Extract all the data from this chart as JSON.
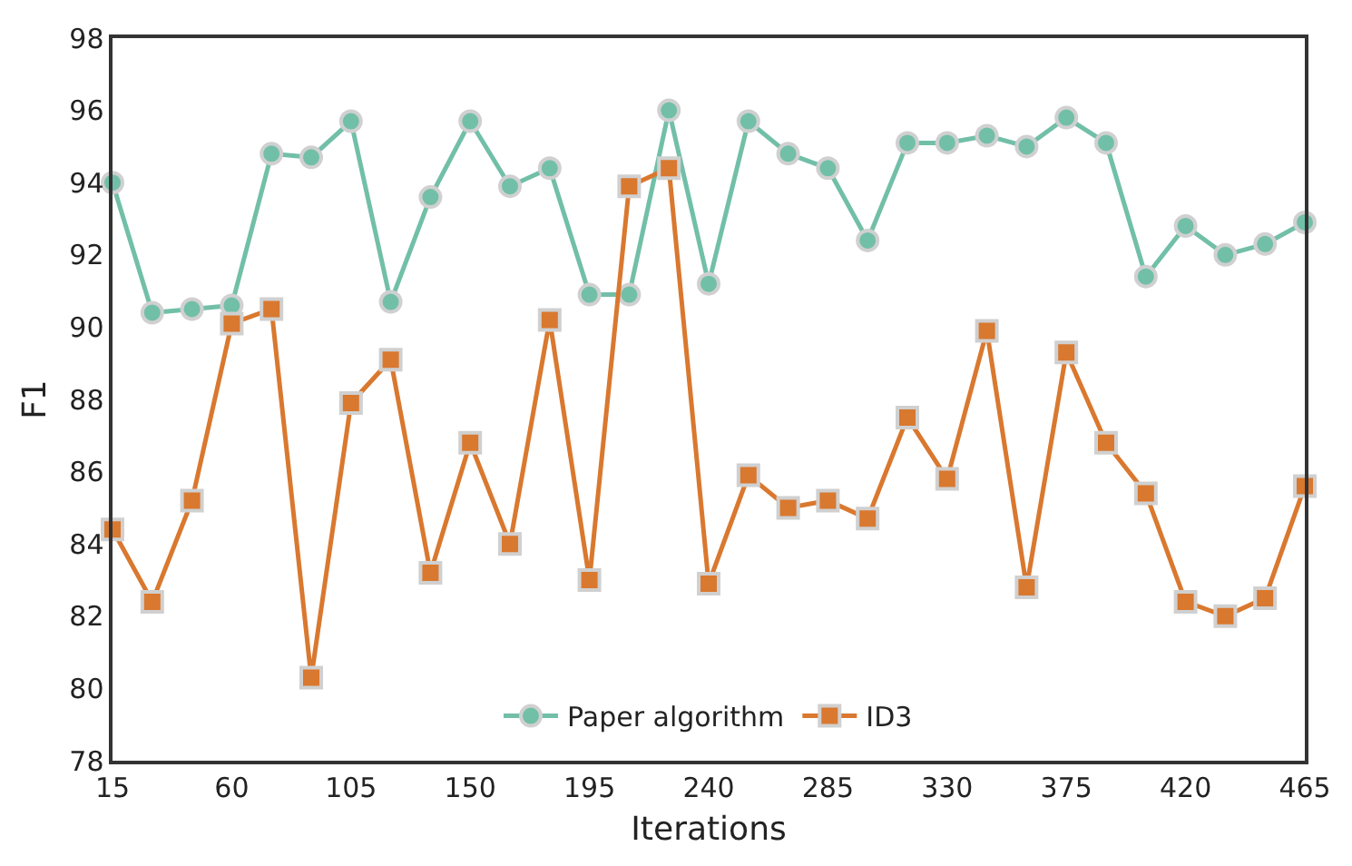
{
  "chart_data": {
    "type": "line",
    "xlabel": "Iterations",
    "ylabel": "F1",
    "x": [
      15,
      30,
      45,
      60,
      75,
      90,
      105,
      120,
      135,
      150,
      165,
      180,
      195,
      210,
      225,
      240,
      255,
      270,
      285,
      300,
      315,
      330,
      345,
      360,
      375,
      390,
      405,
      420,
      435,
      450,
      465
    ],
    "series": [
      {
        "name": "Paper algorithm",
        "color": "#72bfa8",
        "marker": "circle",
        "values": [
          94.0,
          90.4,
          90.5,
          90.6,
          94.8,
          94.7,
          95.7,
          90.7,
          93.6,
          95.7,
          93.9,
          94.4,
          90.9,
          90.9,
          96.0,
          91.2,
          95.7,
          94.8,
          94.4,
          92.4,
          95.1,
          95.1,
          95.3,
          95.0,
          95.8,
          95.1,
          91.4,
          92.8,
          92.0,
          92.3,
          92.9
        ]
      },
      {
        "name": "ID3",
        "color": "#d9782f",
        "marker": "square",
        "values": [
          84.4,
          82.4,
          85.2,
          90.1,
          90.5,
          80.3,
          87.9,
          89.1,
          83.2,
          86.8,
          84.0,
          90.2,
          83.0,
          93.9,
          94.4,
          82.9,
          85.9,
          85.0,
          85.2,
          84.7,
          87.5,
          85.8,
          89.9,
          82.8,
          89.3,
          86.8,
          85.4,
          82.4,
          82.0,
          82.5,
          85.6
        ]
      }
    ],
    "xlim": [
      15,
      465
    ],
    "xticks": [
      15,
      60,
      105,
      150,
      195,
      240,
      285,
      330,
      375,
      420,
      465
    ],
    "ylim": [
      78,
      98
    ],
    "yticks": [
      78,
      80,
      82,
      84,
      86,
      88,
      90,
      92,
      94,
      96,
      98
    ],
    "grid": false,
    "legend": "bottom",
    "line_style": "solid"
  }
}
